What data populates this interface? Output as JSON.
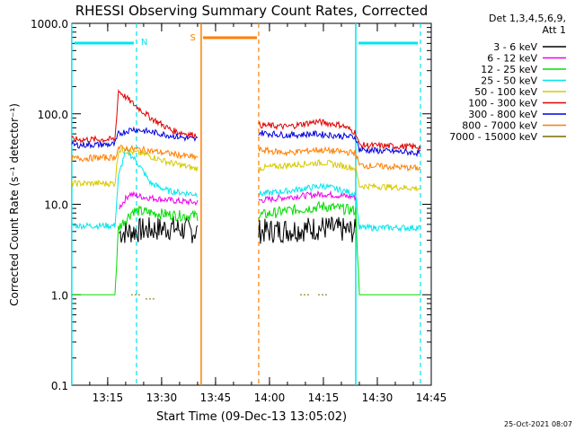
{
  "chart_data": {
    "type": "line",
    "title": "RHESSI Observing Summary Count Rates, Corrected",
    "xlabel": "Start Time (09-Dec-13 13:05:02)",
    "ylabel": "Corrected Count Rate (s⁻¹ detector⁻¹)",
    "y_scale": "log",
    "ylim": [
      0.1,
      1000
    ],
    "xlim": [
      "13:05:02",
      "14:45:00"
    ],
    "x_ticks": [
      "13:15",
      "13:30",
      "13:45",
      "14:00",
      "14:15",
      "14:30",
      "14:45"
    ],
    "y_ticks": [
      "0.1",
      "1.0",
      "10.0",
      "100.0",
      "1000.0"
    ],
    "detector_info": [
      "Det 1,3,4,5,6,9,",
      "Att 1"
    ],
    "footer_date": "25-Oct-2021 08:07",
    "markers": {
      "N_label": "N",
      "S_label": "S",
      "night_intervals": [
        [
          "13:05",
          "13:23"
        ],
        [
          "14:24",
          "14:42"
        ]
      ],
      "saa_interval": [
        "13:41",
        "13:57"
      ],
      "colors": {
        "night": "#00e5ee",
        "saa": "#ff7f00"
      }
    },
    "gap": [
      "13:40",
      "13:57"
    ],
    "series": [
      {
        "name": "3 - 6 keV",
        "color": "#000000",
        "values": [
          [
            "13:05",
            null
          ],
          [
            "13:18",
            4.8
          ],
          [
            "13:25",
            5.2
          ],
          [
            "13:33",
            5.5
          ],
          [
            "13:39",
            5.0
          ],
          [
            "13:57",
            5.0
          ],
          [
            "14:05",
            5.2
          ],
          [
            "14:15",
            5.5
          ],
          [
            "14:24",
            5.0
          ]
        ]
      },
      {
        "name": "6 - 12 keV",
        "color": "#ee00ee",
        "values": [
          [
            "13:05",
            null
          ],
          [
            "13:18",
            9.0
          ],
          [
            "13:21",
            13.0
          ],
          [
            "13:25",
            12.0
          ],
          [
            "13:33",
            11.0
          ],
          [
            "13:39",
            10.5
          ],
          [
            "13:57",
            11.0
          ],
          [
            "14:05",
            12.0
          ],
          [
            "14:15",
            13.0
          ],
          [
            "14:24",
            12.0
          ]
        ]
      },
      {
        "name": "12 - 25 keV",
        "color": "#00dd00",
        "values": [
          [
            "13:05",
            1.0
          ],
          [
            "13:17",
            1.0
          ],
          [
            "13:18",
            5.5
          ],
          [
            "13:22",
            8.5
          ],
          [
            "13:28",
            8.0
          ],
          [
            "13:35",
            7.5
          ],
          [
            "13:39",
            7.5
          ],
          [
            "13:57",
            7.5
          ],
          [
            "14:05",
            8.5
          ],
          [
            "14:15",
            9.5
          ],
          [
            "14:24",
            8.5
          ],
          [
            "14:25",
            1.0
          ],
          [
            "14:42",
            1.0
          ]
        ]
      },
      {
        "name": "25 - 50 keV",
        "color": "#00e5ee",
        "values": [
          [
            "13:05",
            5.8
          ],
          [
            "13:17",
            5.8
          ],
          [
            "13:18",
            20.0
          ],
          [
            "13:20",
            40.0
          ],
          [
            "13:23",
            30.0
          ],
          [
            "13:27",
            17.0
          ],
          [
            "13:32",
            14.0
          ],
          [
            "13:39",
            13.0
          ],
          [
            "13:57",
            13.0
          ],
          [
            "14:05",
            14.0
          ],
          [
            "14:15",
            16.0
          ],
          [
            "14:24",
            13.0
          ],
          [
            "14:25",
            5.5
          ],
          [
            "14:42",
            5.5
          ]
        ]
      },
      {
        "name": "50 - 100 keV",
        "color": "#d8c800",
        "values": [
          [
            "13:05",
            17.0
          ],
          [
            "13:17",
            17.0
          ],
          [
            "13:18",
            40.0
          ],
          [
            "13:25",
            36.0
          ],
          [
            "13:32",
            29.0
          ],
          [
            "13:39",
            25.0
          ],
          [
            "13:57",
            25.0
          ],
          [
            "14:05",
            27.0
          ],
          [
            "14:15",
            29.0
          ],
          [
            "14:24",
            25.0
          ],
          [
            "14:25",
            16.0
          ],
          [
            "14:42",
            15.0
          ]
        ]
      },
      {
        "name": "100 - 300 keV",
        "color": "#e00000",
        "values": [
          [
            "13:05",
            52.0
          ],
          [
            "13:17",
            52.0
          ],
          [
            "13:18",
            180.0
          ],
          [
            "13:22",
            130.0
          ],
          [
            "13:27",
            90.0
          ],
          [
            "13:33",
            65.0
          ],
          [
            "13:39",
            58.0
          ],
          [
            "13:57",
            75.0
          ],
          [
            "14:05",
            72.0
          ],
          [
            "14:13",
            82.0
          ],
          [
            "14:20",
            75.0
          ],
          [
            "14:24",
            62.0
          ],
          [
            "14:25",
            45.0
          ],
          [
            "14:42",
            43.0
          ]
        ]
      },
      {
        "name": "300 - 800 keV",
        "color": "#0000dd",
        "values": [
          [
            "13:05",
            45.0
          ],
          [
            "13:17",
            46.0
          ],
          [
            "13:18",
            60.0
          ],
          [
            "13:22",
            68.0
          ],
          [
            "13:30",
            60.0
          ],
          [
            "13:39",
            52.0
          ],
          [
            "13:57",
            62.0
          ],
          [
            "14:05",
            58.0
          ],
          [
            "14:13",
            60.0
          ],
          [
            "14:24",
            55.0
          ],
          [
            "14:25",
            40.0
          ],
          [
            "14:42",
            37.0
          ]
        ]
      },
      {
        "name": "800 - 7000 keV",
        "color": "#ff7f00",
        "values": [
          [
            "13:05",
            32.0
          ],
          [
            "13:17",
            33.0
          ],
          [
            "13:18",
            42.0
          ],
          [
            "13:25",
            40.0
          ],
          [
            "13:33",
            36.0
          ],
          [
            "13:39",
            33.0
          ],
          [
            "13:57",
            40.0
          ],
          [
            "14:05",
            37.0
          ],
          [
            "14:13",
            40.0
          ],
          [
            "14:24",
            37.0
          ],
          [
            "14:25",
            27.0
          ],
          [
            "14:42",
            25.0
          ]
        ]
      },
      {
        "name": "7000 - 15000 keV",
        "color": "#7a6a00",
        "values": [
          [
            "13:23",
            1.0
          ],
          [
            "13:27",
            0.9
          ],
          [
            "14:10",
            1.0
          ],
          [
            "14:15",
            1.0
          ]
        ]
      }
    ]
  }
}
